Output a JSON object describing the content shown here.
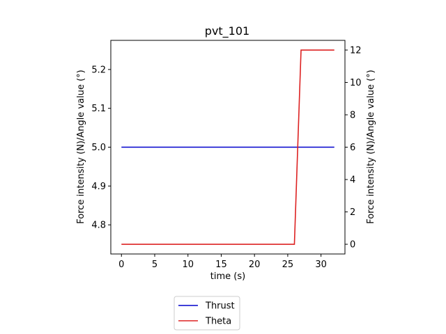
{
  "chart_data": {
    "type": "line",
    "title": "pvt_101",
    "xlabel": "time (s)",
    "ylabel_left": "Force intensity (N)/Angle value (°)",
    "ylabel_right": "Force intensity (N)/Angle value (°)",
    "xlim": [
      -1.6,
      33.6
    ],
    "ylim_left": [
      4.725,
      5.275
    ],
    "ylim_right": [
      -0.6,
      12.6
    ],
    "x_ticks": [
      0,
      5,
      10,
      15,
      20,
      25,
      30
    ],
    "y_ticks_left": [
      4.8,
      4.9,
      5.0,
      5.1,
      5.2
    ],
    "y_ticks_right": [
      0,
      2,
      4,
      6,
      8,
      10,
      12
    ],
    "grid": false,
    "legend_position": "below",
    "series": [
      {
        "name": "Thrust",
        "axis": "left",
        "color": "#0000cc",
        "x": [
          0,
          32
        ],
        "y": [
          5.0,
          5.0
        ]
      },
      {
        "name": "Theta",
        "axis": "right",
        "color": "#dd2222",
        "x": [
          0,
          26,
          27,
          32
        ],
        "y": [
          0,
          0,
          12,
          12
        ]
      }
    ]
  }
}
